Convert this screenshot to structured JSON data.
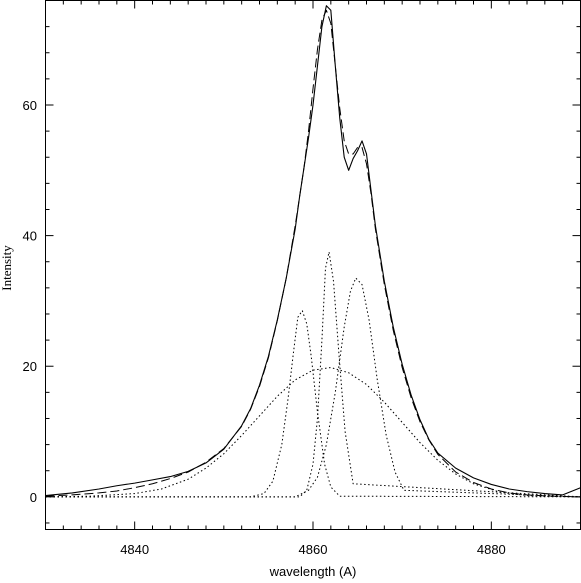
{
  "chart_data": {
    "type": "line",
    "title": "",
    "xlabel": "wavelength (A)",
    "ylabel": "Intensity",
    "xlim": [
      4830,
      4890
    ],
    "ylim": [
      -5,
      76
    ],
    "x_ticks": [
      "4840",
      "4860",
      "4880"
    ],
    "y_ticks": [
      "0",
      "20",
      "40",
      "60"
    ],
    "x_tick_values": [
      4840,
      4860,
      4880
    ],
    "y_tick_values": [
      0,
      20,
      40,
      60
    ],
    "grid": false,
    "legend": "none",
    "series": [
      {
        "style": "solid",
        "x": [
          4830,
          4833,
          4836,
          4838,
          4840,
          4842,
          4844,
          4846,
          4848,
          4850,
          4852,
          4853,
          4854,
          4855,
          4856,
          4857,
          4858,
          4858.5,
          4859,
          4859.5,
          4860,
          4860.5,
          4861,
          4861.5,
          4862,
          4862.5,
          4863,
          4863.5,
          4864,
          4864.5,
          4865,
          4865.5,
          4866,
          4866.5,
          4867,
          4868,
          4869,
          4870,
          4871,
          4872,
          4873,
          4874,
          4876,
          4878,
          4880,
          4882,
          4884,
          4886,
          4888,
          4890
        ],
        "y": [
          0.2,
          0.6,
          1.2,
          1.7,
          2.1,
          2.6,
          3.1,
          3.9,
          5.2,
          7.3,
          10.9,
          13.5,
          17.1,
          21.5,
          27.1,
          33.5,
          41.0,
          46.0,
          50.5,
          55.0,
          60.0,
          66.0,
          72.0,
          75.2,
          74.5,
          66.0,
          58.0,
          52.0,
          50.0,
          51.8,
          53.0,
          54.5,
          52.5,
          47.0,
          41.5,
          33.0,
          26.0,
          20.3,
          15.6,
          11.8,
          8.8,
          6.7,
          4.4,
          2.9,
          1.9,
          1.2,
          0.8,
          0.5,
          0.3,
          1.4
        ]
      },
      {
        "style": "dashed",
        "x": [
          4830,
          4833,
          4836,
          4838,
          4840,
          4842,
          4844,
          4846,
          4848,
          4850,
          4852,
          4853,
          4854,
          4855,
          4856,
          4857,
          4858,
          4858.5,
          4859,
          4859.5,
          4860,
          4860.5,
          4861,
          4861.5,
          4862,
          4862.5,
          4863,
          4863.5,
          4864,
          4864.5,
          4865,
          4865.5,
          4866,
          4866.5,
          4867,
          4868,
          4869,
          4870,
          4871,
          4872,
          4873,
          4874,
          4876,
          4878,
          4880,
          4882,
          4884,
          4886,
          4888,
          4890
        ],
        "y": [
          0.1,
          0.3,
          0.6,
          0.9,
          1.4,
          2.0,
          2.8,
          3.8,
          5.3,
          7.4,
          10.8,
          13.4,
          16.9,
          21.3,
          27.0,
          33.5,
          41.5,
          46.0,
          50.5,
          56.0,
          62.5,
          68.5,
          73.0,
          74.5,
          72.5,
          66.0,
          59.5,
          54.5,
          52.5,
          52.5,
          53.5,
          53.5,
          51.0,
          46.5,
          41.0,
          32.5,
          25.5,
          19.8,
          15.2,
          11.5,
          8.7,
          6.5,
          3.8,
          2.2,
          1.2,
          0.6,
          0.3,
          0.15,
          0.05,
          0.0
        ]
      },
      {
        "style": "dotted",
        "x": [
          4830,
          4835,
          4840,
          4843,
          4846,
          4848,
          4850,
          4852,
          4854,
          4856,
          4858,
          4860,
          4862,
          4864,
          4866,
          4868,
          4870,
          4872,
          4874,
          4876,
          4878,
          4881,
          4884,
          4887,
          4890
        ],
        "y": [
          0.0,
          0.1,
          0.5,
          1.2,
          2.7,
          4.4,
          6.6,
          9.4,
          12.4,
          15.4,
          17.9,
          19.4,
          19.8,
          19.0,
          17.2,
          14.5,
          11.4,
          8.3,
          5.6,
          3.5,
          2.0,
          0.7,
          0.2,
          0.05,
          0.0
        ]
      },
      {
        "style": "dotted",
        "x": [
          4830,
          4853,
          4854.5,
          4855.5,
          4856.5,
          4857.2,
          4857.8,
          4858.3,
          4858.8,
          4859.3,
          4859.8,
          4860.5,
          4861.3,
          4862,
          4863,
          4890
        ],
        "y": [
          0.0,
          0.0,
          0.5,
          2.4,
          8.0,
          15.0,
          22.0,
          27.5,
          28.5,
          26.5,
          21.5,
          13.0,
          5.0,
          1.5,
          0.1,
          0.0
        ]
      },
      {
        "style": "dotted",
        "x": [
          4830,
          4858.5,
          4859.3,
          4860,
          4860.5,
          4861,
          4861.4,
          4861.8,
          4862.3,
          4862.9,
          4863.6,
          4864.5,
          4890
        ],
        "y": [
          0.0,
          0.0,
          1.0,
          5.0,
          12.0,
          24.0,
          35.0,
          37.5,
          33.0,
          22.0,
          10.0,
          2.0,
          0.0
        ]
      },
      {
        "style": "dotted",
        "x": [
          4830,
          4858,
          4859.5,
          4860.5,
          4861.5,
          4862.5,
          4863.5,
          4864.2,
          4864.8,
          4865.5,
          4866.3,
          4867.2,
          4868.2,
          4869.2,
          4870.2,
          4890
        ],
        "y": [
          0.0,
          0.0,
          1.0,
          3.0,
          8.0,
          16.0,
          26.0,
          31.5,
          33.5,
          32.5,
          27.0,
          18.0,
          9.5,
          3.8,
          1.0,
          0.0
        ]
      }
    ]
  }
}
